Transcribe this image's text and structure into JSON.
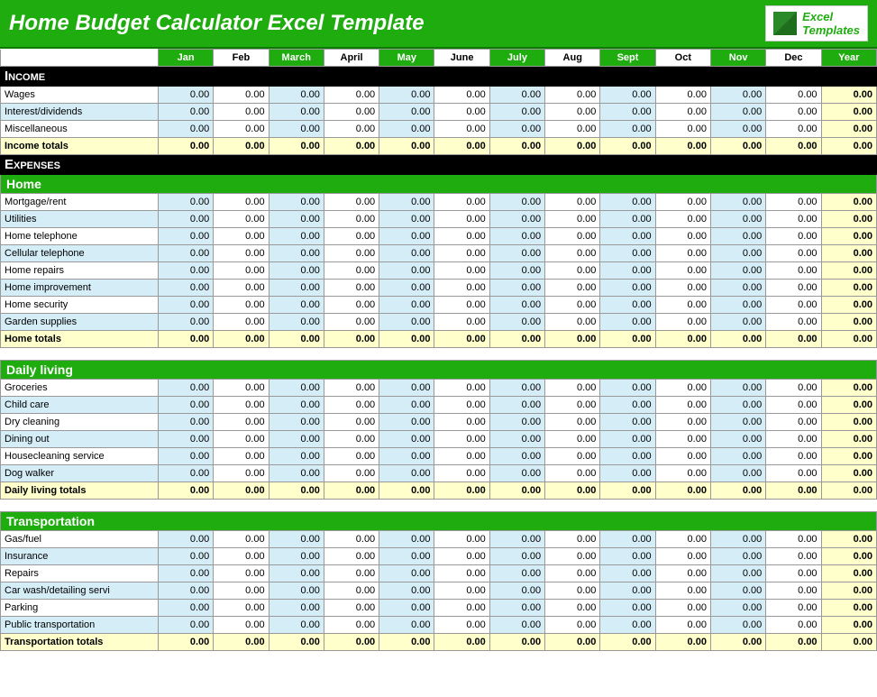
{
  "title": "Home Budget Calculator Excel Template",
  "logo": {
    "top": "Excel",
    "bottom": "Templates"
  },
  "months": [
    "Jan",
    "Feb",
    "March",
    "April",
    "May",
    "June",
    "July",
    "Aug",
    "Sept",
    "Oct",
    "Nov",
    "Dec",
    "Year"
  ],
  "month_inverted": [
    false,
    true,
    false,
    true,
    false,
    true,
    false,
    true,
    false,
    true,
    false,
    true,
    false
  ],
  "blue_cols": [
    0,
    2,
    4,
    6,
    8,
    10
  ],
  "sections": [
    {
      "heading": "Income",
      "heading_style": "black",
      "rows": [
        {
          "label": "Wages",
          "values": [
            "0.00",
            "0.00",
            "0.00",
            "0.00",
            "0.00",
            "0.00",
            "0.00",
            "0.00",
            "0.00",
            "0.00",
            "0.00",
            "0.00",
            "0.00"
          ]
        },
        {
          "label": "Interest/dividends",
          "values": [
            "0.00",
            "0.00",
            "0.00",
            "0.00",
            "0.00",
            "0.00",
            "0.00",
            "0.00",
            "0.00",
            "0.00",
            "0.00",
            "0.00",
            "0.00"
          ]
        },
        {
          "label": "Miscellaneous",
          "values": [
            "0.00",
            "0.00",
            "0.00",
            "0.00",
            "0.00",
            "0.00",
            "0.00",
            "0.00",
            "0.00",
            "0.00",
            "0.00",
            "0.00",
            "0.00"
          ]
        }
      ],
      "totals": {
        "label": "Income totals",
        "values": [
          "0.00",
          "0.00",
          "0.00",
          "0.00",
          "0.00",
          "0.00",
          "0.00",
          "0.00",
          "0.00",
          "0.00",
          "0.00",
          "0.00",
          "0.00"
        ]
      }
    },
    {
      "heading": "Expenses",
      "heading_style": "black"
    },
    {
      "heading": "Home",
      "heading_style": "green",
      "rows": [
        {
          "label": "Mortgage/rent",
          "values": [
            "0.00",
            "0.00",
            "0.00",
            "0.00",
            "0.00",
            "0.00",
            "0.00",
            "0.00",
            "0.00",
            "0.00",
            "0.00",
            "0.00",
            "0.00"
          ]
        },
        {
          "label": "Utilities",
          "values": [
            "0.00",
            "0.00",
            "0.00",
            "0.00",
            "0.00",
            "0.00",
            "0.00",
            "0.00",
            "0.00",
            "0.00",
            "0.00",
            "0.00",
            "0.00"
          ]
        },
        {
          "label": "Home telephone",
          "values": [
            "0.00",
            "0.00",
            "0.00",
            "0.00",
            "0.00",
            "0.00",
            "0.00",
            "0.00",
            "0.00",
            "0.00",
            "0.00",
            "0.00",
            "0.00"
          ]
        },
        {
          "label": "Cellular telephone",
          "values": [
            "0.00",
            "0.00",
            "0.00",
            "0.00",
            "0.00",
            "0.00",
            "0.00",
            "0.00",
            "0.00",
            "0.00",
            "0.00",
            "0.00",
            "0.00"
          ]
        },
        {
          "label": "Home repairs",
          "values": [
            "0.00",
            "0.00",
            "0.00",
            "0.00",
            "0.00",
            "0.00",
            "0.00",
            "0.00",
            "0.00",
            "0.00",
            "0.00",
            "0.00",
            "0.00"
          ]
        },
        {
          "label": "Home improvement",
          "values": [
            "0.00",
            "0.00",
            "0.00",
            "0.00",
            "0.00",
            "0.00",
            "0.00",
            "0.00",
            "0.00",
            "0.00",
            "0.00",
            "0.00",
            "0.00"
          ]
        },
        {
          "label": "Home security",
          "values": [
            "0.00",
            "0.00",
            "0.00",
            "0.00",
            "0.00",
            "0.00",
            "0.00",
            "0.00",
            "0.00",
            "0.00",
            "0.00",
            "0.00",
            "0.00"
          ]
        },
        {
          "label": "Garden supplies",
          "values": [
            "0.00",
            "0.00",
            "0.00",
            "0.00",
            "0.00",
            "0.00",
            "0.00",
            "0.00",
            "0.00",
            "0.00",
            "0.00",
            "0.00",
            "0.00"
          ]
        }
      ],
      "totals": {
        "label": "Home totals",
        "values": [
          "0.00",
          "0.00",
          "0.00",
          "0.00",
          "0.00",
          "0.00",
          "0.00",
          "0.00",
          "0.00",
          "0.00",
          "0.00",
          "0.00",
          "0.00"
        ]
      },
      "spacer_after": true
    },
    {
      "heading": "Daily living",
      "heading_style": "green",
      "rows": [
        {
          "label": "Groceries",
          "values": [
            "0.00",
            "0.00",
            "0.00",
            "0.00",
            "0.00",
            "0.00",
            "0.00",
            "0.00",
            "0.00",
            "0.00",
            "0.00",
            "0.00",
            "0.00"
          ]
        },
        {
          "label": "Child care",
          "values": [
            "0.00",
            "0.00",
            "0.00",
            "0.00",
            "0.00",
            "0.00",
            "0.00",
            "0.00",
            "0.00",
            "0.00",
            "0.00",
            "0.00",
            "0.00"
          ]
        },
        {
          "label": "Dry cleaning",
          "values": [
            "0.00",
            "0.00",
            "0.00",
            "0.00",
            "0.00",
            "0.00",
            "0.00",
            "0.00",
            "0.00",
            "0.00",
            "0.00",
            "0.00",
            "0.00"
          ]
        },
        {
          "label": "Dining out",
          "values": [
            "0.00",
            "0.00",
            "0.00",
            "0.00",
            "0.00",
            "0.00",
            "0.00",
            "0.00",
            "0.00",
            "0.00",
            "0.00",
            "0.00",
            "0.00"
          ]
        },
        {
          "label": "Housecleaning service",
          "values": [
            "0.00",
            "0.00",
            "0.00",
            "0.00",
            "0.00",
            "0.00",
            "0.00",
            "0.00",
            "0.00",
            "0.00",
            "0.00",
            "0.00",
            "0.00"
          ]
        },
        {
          "label": "Dog walker",
          "values": [
            "0.00",
            "0.00",
            "0.00",
            "0.00",
            "0.00",
            "0.00",
            "0.00",
            "0.00",
            "0.00",
            "0.00",
            "0.00",
            "0.00",
            "0.00"
          ]
        }
      ],
      "totals": {
        "label": "Daily living totals",
        "values": [
          "0.00",
          "0.00",
          "0.00",
          "0.00",
          "0.00",
          "0.00",
          "0.00",
          "0.00",
          "0.00",
          "0.00",
          "0.00",
          "0.00",
          "0.00"
        ]
      },
      "spacer_after": true
    },
    {
      "heading": "Transportation",
      "heading_style": "green",
      "rows": [
        {
          "label": "Gas/fuel",
          "values": [
            "0.00",
            "0.00",
            "0.00",
            "0.00",
            "0.00",
            "0.00",
            "0.00",
            "0.00",
            "0.00",
            "0.00",
            "0.00",
            "0.00",
            "0.00"
          ]
        },
        {
          "label": "Insurance",
          "values": [
            "0.00",
            "0.00",
            "0.00",
            "0.00",
            "0.00",
            "0.00",
            "0.00",
            "0.00",
            "0.00",
            "0.00",
            "0.00",
            "0.00",
            "0.00"
          ]
        },
        {
          "label": "Repairs",
          "values": [
            "0.00",
            "0.00",
            "0.00",
            "0.00",
            "0.00",
            "0.00",
            "0.00",
            "0.00",
            "0.00",
            "0.00",
            "0.00",
            "0.00",
            "0.00"
          ]
        },
        {
          "label": "Car wash/detailing servi",
          "values": [
            "0.00",
            "0.00",
            "0.00",
            "0.00",
            "0.00",
            "0.00",
            "0.00",
            "0.00",
            "0.00",
            "0.00",
            "0.00",
            "0.00",
            "0.00"
          ]
        },
        {
          "label": "Parking",
          "values": [
            "0.00",
            "0.00",
            "0.00",
            "0.00",
            "0.00",
            "0.00",
            "0.00",
            "0.00",
            "0.00",
            "0.00",
            "0.00",
            "0.00",
            "0.00"
          ]
        },
        {
          "label": "Public transportation",
          "values": [
            "0.00",
            "0.00",
            "0.00",
            "0.00",
            "0.00",
            "0.00",
            "0.00",
            "0.00",
            "0.00",
            "0.00",
            "0.00",
            "0.00",
            "0.00"
          ]
        }
      ],
      "totals": {
        "label": "Transportation totals",
        "values": [
          "0.00",
          "0.00",
          "0.00",
          "0.00",
          "0.00",
          "0.00",
          "0.00",
          "0.00",
          "0.00",
          "0.00",
          "0.00",
          "0.00",
          "0.00"
        ]
      }
    }
  ],
  "colors": {
    "green": "#1fac0f",
    "black": "#000000",
    "alt_blue": "#d4edf7",
    "year_yellow": "#ffffcc",
    "grid": "#999999"
  }
}
